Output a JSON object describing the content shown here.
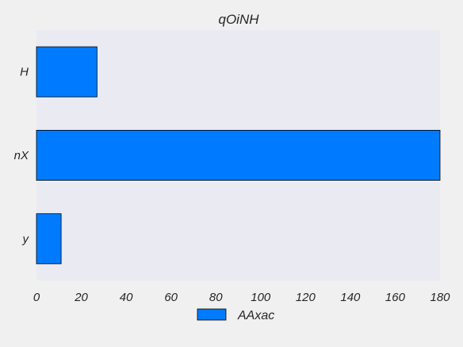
{
  "chart_data": {
    "type": "bar",
    "orientation": "horizontal",
    "title": "qOiNH",
    "xlabel": "",
    "ylabel": "",
    "categories": [
      "H",
      "nX",
      "y"
    ],
    "series": [
      {
        "name": "AAxac",
        "values": [
          27,
          180,
          11
        ],
        "color": "#007bff"
      }
    ],
    "xlim": [
      0,
      180
    ],
    "xticks": [
      0,
      20,
      40,
      60,
      80,
      100,
      120,
      140,
      160,
      180
    ],
    "grid": false,
    "legend_position": "bottom-center",
    "background": "#eaeaf2",
    "figure_background": "#f0f0f0"
  }
}
